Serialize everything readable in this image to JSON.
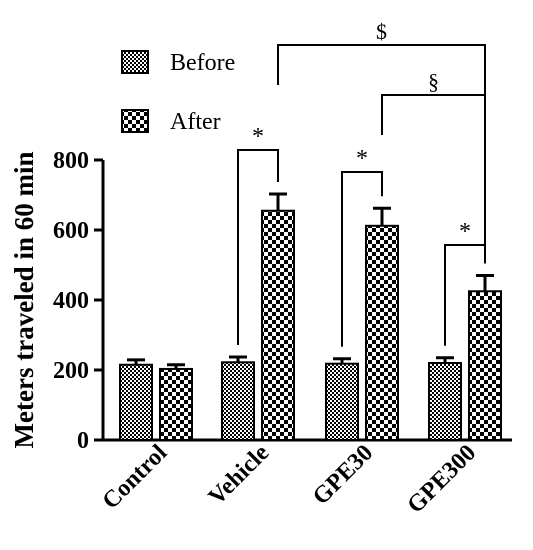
{
  "chart_data": {
    "type": "bar",
    "title": "",
    "xlabel": "",
    "ylabel": "Meters traveled in 60 min",
    "ylim": [
      0,
      800
    ],
    "yticks": [
      0,
      200,
      400,
      600,
      800
    ],
    "categories": [
      "Control",
      "Vehicle",
      "GPE30",
      "GPE300"
    ],
    "series": [
      {
        "name": "Before",
        "values": [
          215,
          222,
          218,
          220
        ],
        "errors": [
          14,
          15,
          14,
          15
        ],
        "pattern": "fine-checker"
      },
      {
        "name": "After",
        "values": [
          203,
          655,
          612,
          425
        ],
        "errors": [
          12,
          48,
          50,
          45
        ],
        "pattern": "coarse-checker"
      }
    ],
    "legend": {
      "position": "top-left"
    },
    "grid": false,
    "annotations": [
      {
        "symbol": "*",
        "between": [
          "Vehicle:Before",
          "Vehicle:After"
        ]
      },
      {
        "symbol": "*",
        "between": [
          "GPE30:Before",
          "GPE30:After"
        ]
      },
      {
        "symbol": "*",
        "between": [
          "GPE300:Before",
          "GPE300:After"
        ]
      },
      {
        "symbol": "§",
        "between": [
          "GPE30:After",
          "GPE300:After"
        ]
      },
      {
        "symbol": "$",
        "between": [
          "Vehicle:After",
          "GPE300:After"
        ]
      }
    ]
  }
}
